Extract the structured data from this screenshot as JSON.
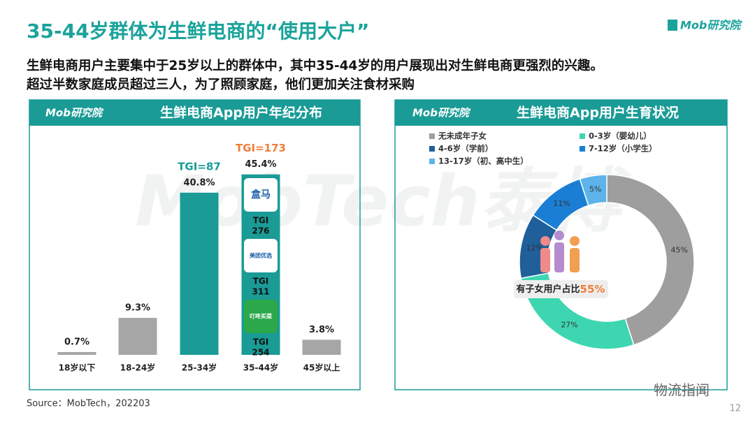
{
  "header": {
    "title": "35-44岁群体为生鲜电商的“使用大户”",
    "logo": "Mob研究院",
    "subtitle": [
      "生鲜电商用户主要集中于25岁以上的群体中，其中35-44岁的用户展现出对生鲜电商更强烈的兴趣。",
      "超过半数家庭成员超过三人，为了照顾家庭，他们更加关注食材采购"
    ]
  },
  "chart_data": [
    {
      "type": "bar",
      "title": "生鲜电商App用户年纪分布",
      "logo": "Mob研究院",
      "categories": [
        "18岁以下",
        "18-24岁",
        "25-34岁",
        "35-44岁",
        "45岁以上"
      ],
      "values": [
        0.7,
        9.3,
        40.8,
        45.4,
        3.8
      ],
      "value_labels": [
        "0.7%",
        "9.3%",
        "40.8%",
        "45.4%",
        "3.8%"
      ],
      "colors": [
        "#a6a6a6",
        "#a6a6a6",
        "#1a9b96",
        "#1a9b96",
        "#a6a6a6"
      ],
      "annotations": [
        {
          "x": "25-34岁",
          "text": "TGI=87",
          "color": "#1a9b96"
        },
        {
          "x": "35-44岁",
          "text": "TGI=173",
          "color": "#f07d3a"
        }
      ],
      "apps": [
        {
          "name": "盒马",
          "tgi_label": "TGI",
          "tgi": 276
        },
        {
          "name": "美团优选",
          "tgi_label": "TGI",
          "tgi": 311
        },
        {
          "name": "叮咚买菜",
          "tgi_label": "TGI",
          "tgi": 254
        }
      ]
    },
    {
      "type": "pie",
      "donut": true,
      "title": "生鲜电商App用户生育状况",
      "logo": "Mob研究院",
      "categories": [
        "无未成年子女",
        "0-3岁（婴幼儿）",
        "4-6岁（学前）",
        "7-12岁（小学生）",
        "13-17岁（初、高中生）"
      ],
      "values": [
        45,
        27,
        12,
        11,
        5
      ],
      "value_labels": [
        "45%",
        "27%",
        "12%",
        "11%",
        "5%"
      ],
      "colors": [
        "#9e9e9e",
        "#3dd6b0",
        "#1f5f9a",
        "#1a7fd4",
        "#5db3ea"
      ],
      "center_label": "有子女用户占比",
      "center_value": 55,
      "center_value_label": "55%"
    }
  ],
  "footer": {
    "source": "Source：MobTech，202203",
    "page": "12",
    "watermark": "物流指闻",
    "background_watermark": "MobTech泰博"
  }
}
